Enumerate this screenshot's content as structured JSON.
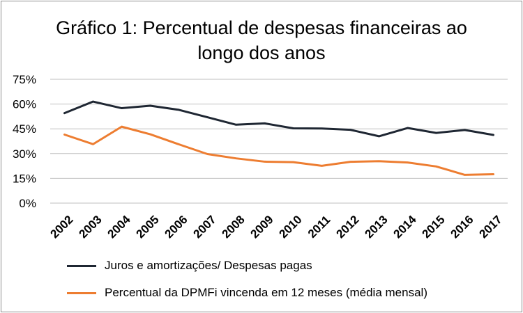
{
  "chart_data": {
    "type": "line",
    "title_line1": "Gráfico 1: Percentual de despesas financeiras ao",
    "title_line2": "longo dos anos",
    "categories": [
      "2002",
      "2003",
      "2004",
      "2005",
      "2006",
      "2007",
      "2008",
      "2009",
      "2010",
      "2011",
      "2012",
      "2013",
      "2014",
      "2015",
      "2016",
      "2017"
    ],
    "y_ticks": [
      "0%",
      "15%",
      "30%",
      "45%",
      "60%",
      "75%"
    ],
    "ylim": [
      0,
      75
    ],
    "grid": true,
    "series": [
      {
        "name": "Juros e amortizações/ Despesas pagas",
        "color": "#1f2733",
        "values": [
          54.5,
          61.5,
          57.5,
          59,
          56.5,
          52,
          47.5,
          48.3,
          45.3,
          45.2,
          44.4,
          40.5,
          45.5,
          42.5,
          44.3,
          41.3
        ]
      },
      {
        "name": "Percentual da DPMFi vincenda em 12 meses (média mensal)",
        "color": "#ed7d31",
        "values": [
          41.5,
          35.7,
          46.3,
          41.7,
          35.6,
          29.7,
          27.1,
          25.1,
          24.8,
          22.6,
          25.0,
          25.4,
          24.6,
          22.2,
          17.1,
          17.5
        ]
      }
    ]
  }
}
